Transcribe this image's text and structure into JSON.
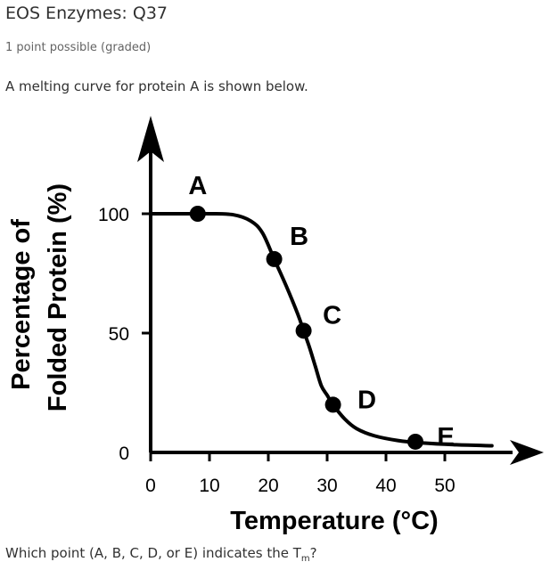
{
  "problem": {
    "title": "EOS Enzymes: Q37",
    "progress": "1 point possible (graded)",
    "prompt": "A melting curve for protein A is shown below.",
    "question_prefix": "Which point (A, B, C, D, or E) indicates the T",
    "question_sub": "m",
    "question_suffix": "?"
  },
  "chart_data": {
    "type": "line",
    "title": "",
    "xlabel": "Temperature (°C)",
    "ylabel_lines": [
      "Percentage of",
      "Folded Protein (%)"
    ],
    "xlim": [
      0,
      60
    ],
    "ylim": [
      0,
      120
    ],
    "x_ticks": [
      0,
      10,
      20,
      30,
      40,
      50
    ],
    "x_tick_labels": [
      "0",
      "10",
      "20",
      "30",
      "40",
      "50"
    ],
    "y_ticks": [
      0,
      50,
      100
    ],
    "y_tick_labels": [
      "0",
      "50",
      "100"
    ],
    "grid": false,
    "series": [
      {
        "curve": {
          "x": [
            0,
            5,
            10,
            14,
            17,
            19,
            21,
            23,
            25,
            26,
            27,
            28,
            29,
            30,
            31,
            33,
            35,
            38,
            42,
            46,
            52,
            58
          ],
          "y": [
            100,
            100,
            100,
            99.6,
            97,
            92,
            81,
            70,
            58,
            51,
            44,
            36,
            28,
            24,
            20,
            14,
            10,
            7,
            5,
            4,
            3.2,
            2.8
          ]
        },
        "points": [
          {
            "label": "A",
            "x": 8,
            "y": 100
          },
          {
            "label": "B",
            "x": 21,
            "y": 81
          },
          {
            "label": "C",
            "x": 26,
            "y": 51
          },
          {
            "label": "D",
            "x": 31,
            "y": 20
          },
          {
            "label": "E",
            "x": 45,
            "y": 4.5
          }
        ]
      }
    ],
    "colors": {
      "line": "#000000",
      "points": "#000000"
    }
  }
}
